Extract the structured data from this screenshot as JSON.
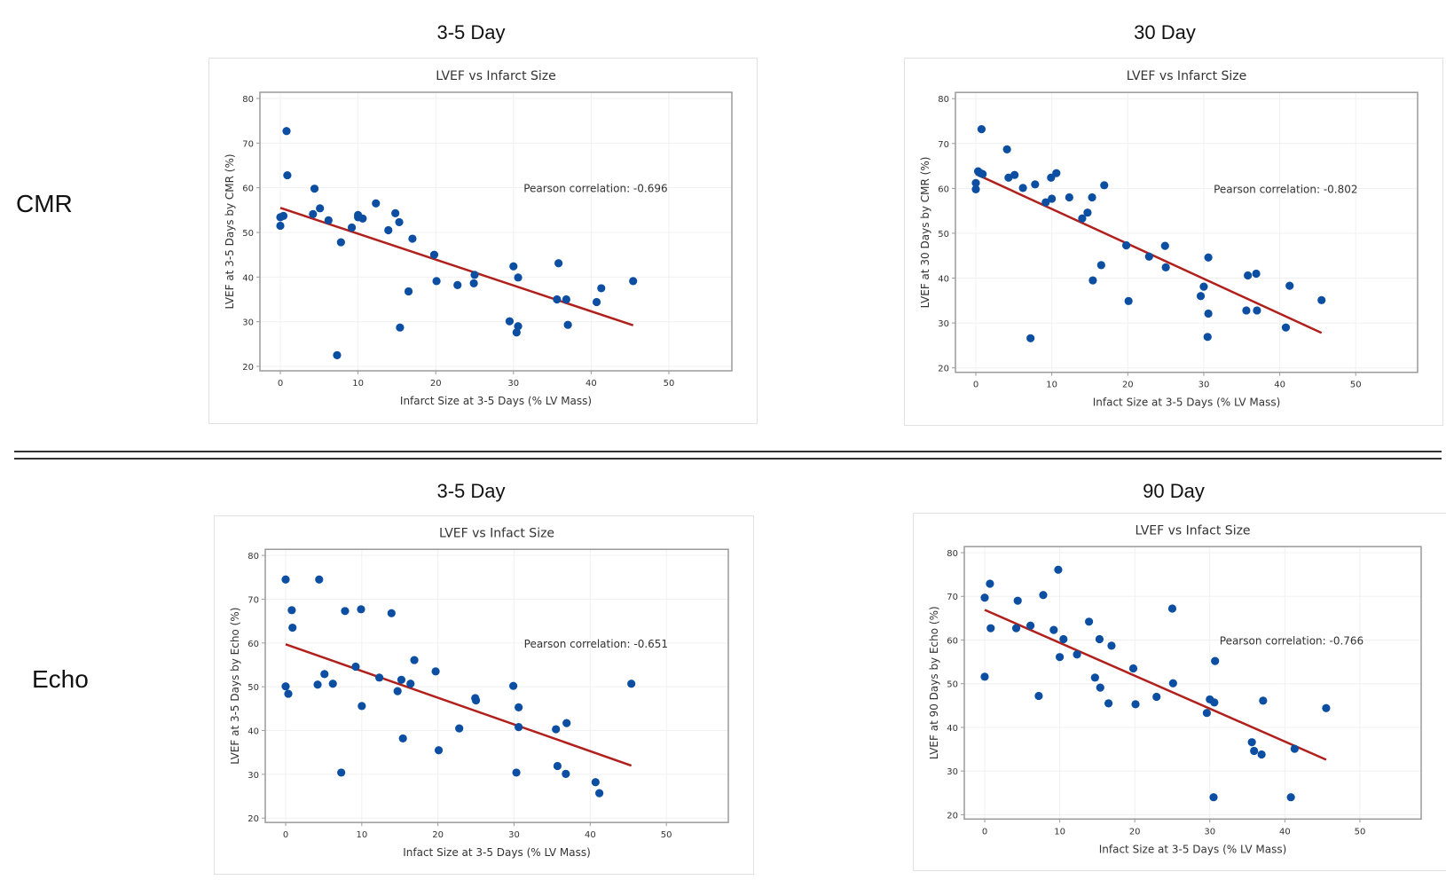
{
  "rows": [
    {
      "label": "CMR"
    },
    {
      "label": "Echo"
    }
  ],
  "sections": [
    {
      "title": "3-5 Day"
    },
    {
      "title": "30 Day"
    },
    {
      "title": "3-5 Day"
    },
    {
      "title": "90 Day"
    }
  ],
  "colors": {
    "point": "#0b4ea2",
    "fit_line": "#b0201c",
    "frame": "#9a9a9a",
    "grid": "#f0f0f0"
  },
  "chart_data": [
    {
      "type": "scatter",
      "title": "LVEF vs Infarct Size",
      "xlabel": "Infarct Size at 3-5 Days (% LV Mass)",
      "ylabel": "LVEF at 3-5 Days by CMR (%)",
      "annotation": "Pearson correlation: -0.696",
      "xlim": [
        0,
        50
      ],
      "ylim": [
        20,
        80
      ],
      "xticks": [
        "0",
        "10",
        "20",
        "30",
        "40",
        "50"
      ],
      "yticks": [
        "20",
        "30",
        "40",
        "50",
        "60",
        "70",
        "80"
      ],
      "grid": true,
      "points": [
        [
          0.8,
          72.7
        ],
        [
          0.9,
          62.8
        ],
        [
          0,
          51.5
        ],
        [
          0,
          53.4
        ],
        [
          0.4,
          53.7
        ],
        [
          4.4,
          59.8
        ],
        [
          4.2,
          54.1
        ],
        [
          5.1,
          55.4
        ],
        [
          6.2,
          52.7
        ],
        [
          7.8,
          47.8
        ],
        [
          7.3,
          22.5
        ],
        [
          9.2,
          51.1
        ],
        [
          10.0,
          53.9
        ],
        [
          10.0,
          53.4
        ],
        [
          10.6,
          53.1
        ],
        [
          12.3,
          56.5
        ],
        [
          13.9,
          50.5
        ],
        [
          14.8,
          54.3
        ],
        [
          15.3,
          52.3
        ],
        [
          15.4,
          28.7
        ],
        [
          16.5,
          36.8
        ],
        [
          17.0,
          48.6
        ],
        [
          19.8,
          45.0
        ],
        [
          20.1,
          39.1
        ],
        [
          22.8,
          38.2
        ],
        [
          24.9,
          38.6
        ],
        [
          25.0,
          40.5
        ],
        [
          29.5,
          30.1
        ],
        [
          30.0,
          42.4
        ],
        [
          30.6,
          39.9
        ],
        [
          30.6,
          29.0
        ],
        [
          30.4,
          27.6
        ],
        [
          35.6,
          35.0
        ],
        [
          35.8,
          43.1
        ],
        [
          36.8,
          35.0
        ],
        [
          37.0,
          29.3
        ],
        [
          40.7,
          34.4
        ],
        [
          41.3,
          37.5
        ],
        [
          45.4,
          39.1
        ]
      ],
      "fit_line": [
        [
          0,
          55.5
        ],
        [
          45.4,
          29.2
        ]
      ]
    },
    {
      "type": "scatter",
      "title": "LVEF vs Infarct Size",
      "xlabel": "Infact Size at 3-5 Days (% LV Mass)",
      "ylabel": "LVEF at 30 Days by CMR (%)",
      "annotation": "Pearson correlation: -0.802",
      "xlim": [
        0,
        50
      ],
      "ylim": [
        20,
        80
      ],
      "xticks": [
        "0",
        "10",
        "20",
        "30",
        "40",
        "50"
      ],
      "yticks": [
        "20",
        "30",
        "40",
        "50",
        "60",
        "70",
        "80"
      ],
      "grid": true,
      "points": [
        [
          0.75,
          73.2
        ],
        [
          0,
          61.2
        ],
        [
          0,
          59.8
        ],
        [
          0.3,
          63.8
        ],
        [
          0.6,
          63.4
        ],
        [
          0.9,
          63.2
        ],
        [
          4.1,
          68.7
        ],
        [
          4.3,
          62.4
        ],
        [
          5.1,
          63.0
        ],
        [
          6.2,
          60.1
        ],
        [
          7.2,
          26.6
        ],
        [
          7.8,
          60.9
        ],
        [
          9.2,
          56.9
        ],
        [
          9.9,
          62.4
        ],
        [
          10.0,
          57.7
        ],
        [
          10.6,
          63.4
        ],
        [
          12.3,
          58.0
        ],
        [
          14.0,
          53.3
        ],
        [
          14.7,
          54.6
        ],
        [
          15.3,
          58.0
        ],
        [
          15.4,
          39.5
        ],
        [
          16.5,
          42.9
        ],
        [
          16.9,
          60.7
        ],
        [
          19.8,
          47.3
        ],
        [
          20.1,
          34.9
        ],
        [
          22.8,
          44.8
        ],
        [
          24.9,
          47.2
        ],
        [
          25.0,
          42.4
        ],
        [
          29.6,
          36.0
        ],
        [
          30.0,
          38.1
        ],
        [
          30.5,
          26.9
        ],
        [
          30.6,
          32.1
        ],
        [
          30.6,
          44.6
        ],
        [
          35.6,
          32.8
        ],
        [
          35.8,
          40.6
        ],
        [
          36.9,
          41.0
        ],
        [
          37.0,
          32.8
        ],
        [
          40.8,
          29.0
        ],
        [
          41.3,
          38.3
        ],
        [
          45.5,
          35.1
        ]
      ],
      "fit_line": [
        [
          0,
          63.2
        ],
        [
          45.5,
          27.8
        ]
      ]
    },
    {
      "type": "scatter",
      "title": "LVEF vs Infact Size",
      "xlabel": "Infact Size at 3-5 Days (% LV Mass)",
      "ylabel": "LVEF at 3-5 Days by Echo (%)",
      "annotation": "Pearson correlation: -0.651",
      "xlim": [
        0,
        50
      ],
      "ylim": [
        20,
        80
      ],
      "xticks": [
        "0",
        "10",
        "20",
        "30",
        "40",
        "50"
      ],
      "yticks": [
        "20",
        "30",
        "40",
        "50",
        "60",
        "70",
        "80"
      ],
      "grid": true,
      "points": [
        [
          0,
          74.5
        ],
        [
          4.4,
          74.5
        ],
        [
          0.8,
          67.5
        ],
        [
          0.9,
          63.5
        ],
        [
          0,
          50.1
        ],
        [
          0.35,
          48.4
        ],
        [
          4.2,
          50.5
        ],
        [
          5.1,
          52.9
        ],
        [
          6.2,
          50.7
        ],
        [
          7.3,
          30.4
        ],
        [
          7.8,
          67.3
        ],
        [
          9.2,
          54.6
        ],
        [
          9.9,
          67.7
        ],
        [
          10.0,
          45.6
        ],
        [
          12.3,
          52.1
        ],
        [
          13.9,
          66.8
        ],
        [
          14.7,
          49.0
        ],
        [
          15.2,
          51.6
        ],
        [
          15.4,
          38.2
        ],
        [
          16.4,
          50.7
        ],
        [
          16.9,
          56.1
        ],
        [
          19.7,
          53.5
        ],
        [
          20.1,
          35.5
        ],
        [
          22.8,
          40.5
        ],
        [
          24.9,
          47.4
        ],
        [
          25.0,
          46.9
        ],
        [
          29.9,
          50.2
        ],
        [
          30.6,
          45.3
        ],
        [
          30.6,
          40.8
        ],
        [
          30.3,
          30.4
        ],
        [
          35.5,
          40.3
        ],
        [
          35.7,
          31.9
        ],
        [
          36.9,
          41.7
        ],
        [
          36.8,
          30.1
        ],
        [
          40.7,
          28.2
        ],
        [
          41.2,
          25.7
        ],
        [
          45.4,
          50.7
        ]
      ],
      "fit_line": [
        [
          0,
          59.7
        ],
        [
          45.4,
          32.0
        ]
      ]
    },
    {
      "type": "scatter",
      "title": "LVEF vs Infact Size",
      "xlabel": "Infact Size at 3-5 Days (% LV Mass)",
      "ylabel": "LVEF at 90 Days by Echo (%)",
      "annotation": "Pearson correlation: -0.766",
      "xlim": [
        0,
        50
      ],
      "ylim": [
        20,
        80
      ],
      "xticks": [
        "0",
        "10",
        "20",
        "30",
        "40",
        "50"
      ],
      "yticks": [
        "20",
        "30",
        "40",
        "50",
        "60",
        "70",
        "80"
      ],
      "grid": true,
      "points": [
        [
          0,
          69.7
        ],
        [
          0,
          51.6
        ],
        [
          0.7,
          72.9
        ],
        [
          0.8,
          62.7
        ],
        [
          4.2,
          62.7
        ],
        [
          4.4,
          69.0
        ],
        [
          6.1,
          63.3
        ],
        [
          7.2,
          47.2
        ],
        [
          7.8,
          70.3
        ],
        [
          9.2,
          62.3
        ],
        [
          9.8,
          76.1
        ],
        [
          10.0,
          56.1
        ],
        [
          10.5,
          60.2
        ],
        [
          12.3,
          56.7
        ],
        [
          13.9,
          64.2
        ],
        [
          14.7,
          51.4
        ],
        [
          15.3,
          60.2
        ],
        [
          15.4,
          49.1
        ],
        [
          16.5,
          45.5
        ],
        [
          16.9,
          58.7
        ],
        [
          19.8,
          53.5
        ],
        [
          20.1,
          45.3
        ],
        [
          22.9,
          47.0
        ],
        [
          25.0,
          67.2
        ],
        [
          25.1,
          50.1
        ],
        [
          29.6,
          43.3
        ],
        [
          30.0,
          46.4
        ],
        [
          30.6,
          45.7
        ],
        [
          30.7,
          55.2
        ],
        [
          30.5,
          24.0
        ],
        [
          35.6,
          36.6
        ],
        [
          35.9,
          34.6
        ],
        [
          36.9,
          33.8
        ],
        [
          37.1,
          46.1
        ],
        [
          40.8,
          24.0
        ],
        [
          41.3,
          35.1
        ],
        [
          45.5,
          44.4
        ]
      ],
      "fit_line": [
        [
          0,
          66.9
        ],
        [
          45.5,
          32.6
        ]
      ]
    }
  ]
}
